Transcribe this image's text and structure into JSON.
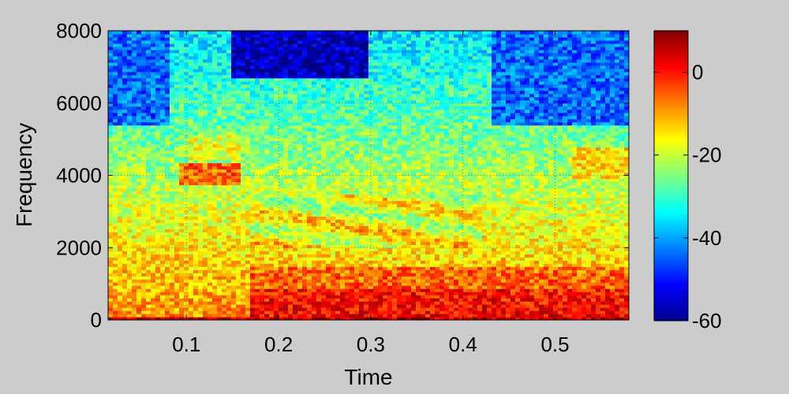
{
  "chart_data": {
    "type": "heatmap",
    "title": "",
    "xlabel": "Time",
    "ylabel": "Frequency",
    "xlim": [
      0.015,
      0.58
    ],
    "ylim": [
      0,
      8000
    ],
    "xticks": [
      0.1,
      0.2,
      0.3,
      0.4,
      0.5
    ],
    "xtick_labels": [
      "0.1",
      "0.2",
      "0.3",
      "0.4",
      "0.5"
    ],
    "yticks": [
      0,
      2000,
      4000,
      6000,
      8000
    ],
    "ytick_labels": [
      "0",
      "2000",
      "4000",
      "6000",
      "8000"
    ],
    "grid": true,
    "colormap": "jet",
    "colorbar": {
      "range": [
        -60,
        10
      ],
      "ticks": [
        0,
        -20,
        -40,
        -60
      ],
      "tick_labels": [
        "0",
        "-20",
        "-40",
        "-60"
      ]
    },
    "energy_regions": [
      {
        "t_range": [
          0.17,
          0.57
        ],
        "f_range": [
          0,
          1500
        ],
        "level_db": 0
      },
      {
        "t_range": [
          0.015,
          0.58
        ],
        "f_range": [
          0,
          120
        ],
        "level_db": 5
      },
      {
        "t_range": [
          0.09,
          0.16
        ],
        "f_range": [
          3800,
          4300
        ],
        "level_db": -5
      },
      {
        "t_range": [
          0.15,
          0.3
        ],
        "f_range": [
          6800,
          8000
        ],
        "level_db": -58
      },
      {
        "t_range": [
          0.015,
          0.58
        ],
        "f_range": [
          5000,
          8000
        ],
        "level_db": -45
      }
    ]
  }
}
